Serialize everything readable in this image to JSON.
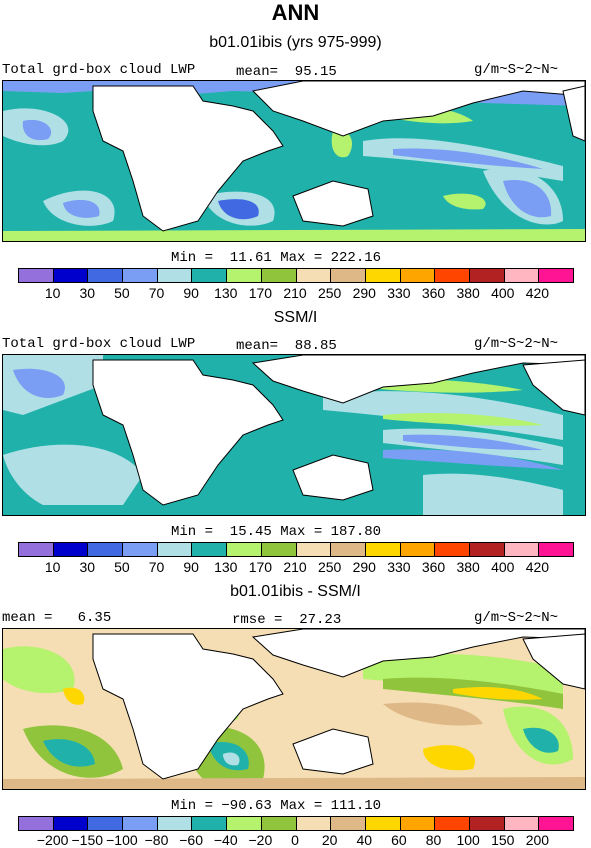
{
  "figure": {
    "title": "ANN",
    "model_subtitle": "b01.01ibis (yrs 975-999)",
    "obs_subtitle": "SSM/I",
    "diff_subtitle": "b01.01ibis - SSM/I"
  },
  "panels": [
    {
      "id": "model",
      "left_label": "Total grd-box cloud LWP",
      "stat_label": "mean=  95.15",
      "units": "g/m~S~2~N~",
      "min_max": "Min =  11.61 Max = 222.16",
      "colorbar": "abs"
    },
    {
      "id": "obs",
      "left_label": "Total grd-box cloud LWP",
      "stat_label": "mean=  88.85",
      "units": "g/m~S~2~N~",
      "min_max": "Min =  15.45 Max = 187.80",
      "colorbar": "abs"
    },
    {
      "id": "diff",
      "left_label": "mean =   6.35",
      "stat_label": "rmse =  27.23",
      "units": "g/m~S~2~N~",
      "min_max": "Min = −90.63 Max = 111.10",
      "colorbar": "diff"
    }
  ],
  "colorbars": {
    "abs": {
      "labels": [
        "10",
        "30",
        "50",
        "70",
        "90",
        "130",
        "170",
        "210",
        "250",
        "290",
        "330",
        "360",
        "380",
        "400",
        "420"
      ],
      "colors": [
        "#9370db",
        "#0000cd",
        "#4169e1",
        "#7b9ef5",
        "#b0e0e6",
        "#20b2aa",
        "#b5f26d",
        "#8fc43c",
        "#f5deb3",
        "#deb887",
        "#ffd700",
        "#ffa500",
        "#ff4500",
        "#b22222",
        "#ffb6c1",
        "#ff1493"
      ]
    },
    "diff": {
      "labels": [
        "−200",
        "−150",
        "−100",
        "−80",
        "−60",
        "−40",
        "−20",
        "0",
        "20",
        "40",
        "60",
        "80",
        "100",
        "150",
        "200"
      ],
      "colors": [
        "#9370db",
        "#0000cd",
        "#4169e1",
        "#7b9ef5",
        "#b0e0e6",
        "#20b2aa",
        "#b5f26d",
        "#8fc43c",
        "#f5deb3",
        "#deb887",
        "#ffd700",
        "#ffa500",
        "#ff4500",
        "#b22222",
        "#ffb6c1",
        "#ff1493"
      ]
    }
  }
}
